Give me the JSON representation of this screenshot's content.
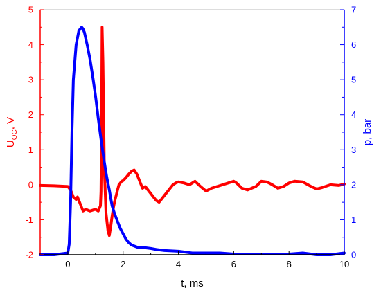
{
  "chart_data": {
    "type": "line",
    "title": "",
    "xlabel": "t, ms",
    "ylabel_left": {
      "main": "U",
      "sub": "OC",
      "suffix": ", V"
    },
    "ylabel_right": "p, bar",
    "xlim": [
      -1,
      10
    ],
    "ylim_left": [
      -2,
      5
    ],
    "ylim_right": [
      0,
      7
    ],
    "x_ticks": [
      0,
      2,
      4,
      6,
      8,
      10
    ],
    "y_left_ticks": [
      -2,
      -1,
      0,
      1,
      2,
      3,
      4,
      5
    ],
    "y_right_ticks": [
      0,
      1,
      2,
      3,
      4,
      5,
      6,
      7
    ],
    "grid": false,
    "legend": "none",
    "colors": {
      "voltage": "#ff0000",
      "pressure": "#0000ff",
      "left_axis": "#ff0000",
      "right_axis": "#0000ff",
      "bottom_axis": "#000000"
    },
    "series": [
      {
        "axis": "left",
        "x": [
          -1.0,
          -0.5,
          0.0,
          0.1,
          0.2,
          0.3,
          0.35,
          0.45,
          0.55,
          0.65,
          0.8,
          1.0,
          1.1,
          1.18,
          1.2,
          1.22,
          1.24,
          1.27,
          1.32,
          1.38,
          1.45,
          1.5,
          1.55,
          1.6,
          1.65,
          1.7,
          1.75,
          1.8,
          1.85,
          1.9,
          1.95,
          2.0,
          2.1,
          2.2,
          2.3,
          2.4,
          2.5,
          2.6,
          2.7,
          2.8,
          2.9,
          3.0,
          3.1,
          3.2,
          3.3,
          3.4,
          3.5,
          3.6,
          3.7,
          3.8,
          3.9,
          4.0,
          4.2,
          4.4,
          4.5,
          4.6,
          4.8,
          5.0,
          5.2,
          5.4,
          5.6,
          5.8,
          6.0,
          6.1,
          6.3,
          6.5,
          6.8,
          7.0,
          7.2,
          7.4,
          7.6,
          7.8,
          8.0,
          8.2,
          8.5,
          8.8,
          9.0,
          9.2,
          9.5,
          9.8,
          10.0
        ],
        "y": [
          -0.02,
          -0.03,
          -0.05,
          -0.15,
          -0.35,
          -0.42,
          -0.35,
          -0.55,
          -0.75,
          -0.7,
          -0.75,
          -0.7,
          -0.75,
          -0.6,
          -0.2,
          1.5,
          4.5,
          3.5,
          0.5,
          -0.8,
          -1.3,
          -1.45,
          -1.2,
          -0.9,
          -0.65,
          -0.45,
          -0.3,
          -0.15,
          0.0,
          0.05,
          0.1,
          0.12,
          0.2,
          0.3,
          0.38,
          0.42,
          0.3,
          0.1,
          -0.1,
          -0.05,
          -0.15,
          -0.25,
          -0.35,
          -0.45,
          -0.5,
          -0.4,
          -0.3,
          -0.2,
          -0.1,
          0.0,
          0.05,
          0.08,
          0.05,
          0.0,
          0.05,
          0.1,
          -0.05,
          -0.18,
          -0.1,
          -0.05,
          0.0,
          0.05,
          0.1,
          0.05,
          -0.1,
          -0.15,
          -0.05,
          0.1,
          0.08,
          0.0,
          -0.1,
          -0.05,
          0.05,
          0.1,
          0.08,
          -0.05,
          -0.12,
          -0.08,
          0.0,
          -0.02,
          0.02
        ]
      },
      {
        "axis": "right",
        "x": [
          -1.0,
          -0.5,
          0.0,
          0.05,
          0.1,
          0.15,
          0.2,
          0.3,
          0.4,
          0.5,
          0.55,
          0.6,
          0.7,
          0.8,
          0.9,
          1.0,
          1.1,
          1.2,
          1.3,
          1.4,
          1.5,
          1.6,
          1.7,
          1.8,
          1.9,
          2.0,
          2.1,
          2.2,
          2.3,
          2.4,
          2.5,
          2.6,
          2.8,
          3.0,
          3.2,
          3.5,
          4.0,
          4.5,
          5.0,
          5.5,
          6.0,
          7.0,
          8.0,
          8.5,
          9.0,
          9.5,
          10.0
        ],
        "y": [
          0.0,
          0.0,
          0.05,
          0.3,
          1.5,
          3.5,
          5.0,
          6.0,
          6.4,
          6.5,
          6.45,
          6.35,
          6.0,
          5.6,
          5.1,
          4.55,
          3.9,
          3.3,
          2.75,
          2.25,
          1.85,
          1.4,
          1.15,
          0.95,
          0.75,
          0.6,
          0.45,
          0.35,
          0.28,
          0.25,
          0.22,
          0.2,
          0.2,
          0.18,
          0.15,
          0.12,
          0.1,
          0.05,
          0.05,
          0.05,
          0.02,
          0.02,
          0.02,
          0.05,
          0.0,
          0.0,
          0.05
        ]
      }
    ]
  }
}
